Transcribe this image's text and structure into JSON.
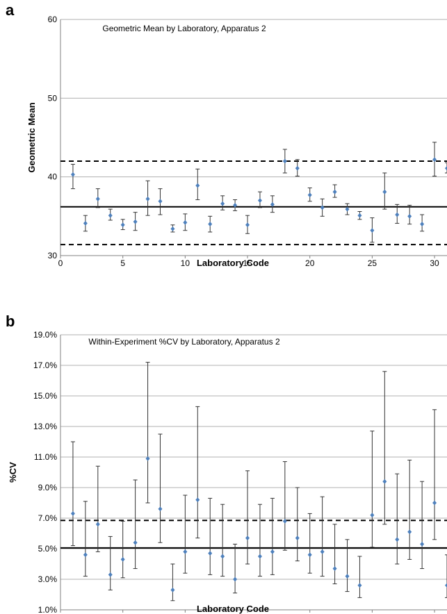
{
  "chart_data": [
    {
      "type": "scatter",
      "panel_letter": "a",
      "title": "Geometric Mean by Laboratory, Apparatus 2",
      "xlabel": "Laboratory Code",
      "ylabel": "Geometric Mean",
      "xlim": [
        0,
        31
      ],
      "ylim": [
        30,
        60
      ],
      "xticks": [
        0,
        5,
        10,
        15,
        20,
        25,
        30
      ],
      "yticks": [
        30,
        40,
        50,
        60
      ],
      "ytick_labels": [
        "30",
        "40",
        "50",
        "60"
      ],
      "grid": true,
      "point_color": "#4f81bd",
      "reference_lines": [
        {
          "value": 36.2,
          "style": "solid"
        },
        {
          "value": 42.0,
          "style": "dashed"
        },
        {
          "value": 31.4,
          "style": "dashed"
        }
      ],
      "x": [
        1,
        2,
        3,
        4,
        5,
        6,
        7,
        8,
        9,
        10,
        11,
        12,
        13,
        14,
        15,
        16,
        17,
        18,
        19,
        20,
        21,
        22,
        23,
        24,
        25,
        26,
        27,
        28,
        29,
        30,
        31
      ],
      "y": [
        40.3,
        34.1,
        37.2,
        35.1,
        33.9,
        34.3,
        37.2,
        36.9,
        33.4,
        34.2,
        38.9,
        34.0,
        36.6,
        36.4,
        33.9,
        37.0,
        36.5,
        42.0,
        41.1,
        37.7,
        36.1,
        38.1,
        35.9,
        35.1,
        33.2,
        38.1,
        35.2,
        35.0,
        34.0,
        42.2,
        41.1
      ],
      "err_low": [
        38.5,
        33.1,
        36.1,
        34.5,
        33.3,
        33.2,
        35.1,
        35.2,
        33.0,
        33.2,
        37.1,
        33.0,
        35.8,
        35.7,
        32.8,
        36.1,
        35.5,
        40.5,
        40.1,
        36.9,
        35.0,
        37.4,
        35.2,
        34.6,
        31.7,
        35.9,
        34.1,
        34.0,
        33.1,
        40.1,
        40.5
      ],
      "err_high": [
        41.6,
        35.1,
        38.5,
        35.9,
        34.6,
        35.5,
        39.5,
        38.5,
        33.9,
        35.3,
        41.0,
        35.0,
        37.6,
        37.1,
        35.1,
        38.1,
        37.6,
        43.5,
        42.2,
        38.6,
        37.2,
        39.0,
        36.6,
        35.6,
        34.8,
        40.5,
        36.5,
        36.4,
        35.2,
        44.4,
        41.8
      ]
    },
    {
      "type": "scatter",
      "panel_letter": "b",
      "title": "Within-Experiment %CV by Laboratory, Apparatus 2",
      "xlabel": "Laboratory Code",
      "ylabel": "%CV",
      "xlim": [
        0,
        31
      ],
      "ylim": [
        1,
        19
      ],
      "xticks": [
        0,
        5,
        10,
        15,
        20,
        25,
        30
      ],
      "yticks": [
        1,
        3,
        5,
        7,
        9,
        11,
        13,
        15,
        17,
        19
      ],
      "ytick_labels": [
        "1.0%",
        "3.0%",
        "5.0%",
        "7.0%",
        "9.0%",
        "11.0%",
        "13.0%",
        "15.0%",
        "17.0%",
        "19.0%"
      ],
      "grid": true,
      "point_color": "#4f81bd",
      "reference_lines": [
        {
          "value": 5.05,
          "style": "solid"
        },
        {
          "value": 6.85,
          "style": "dashed"
        }
      ],
      "x": [
        1,
        2,
        3,
        4,
        5,
        6,
        7,
        8,
        9,
        10,
        11,
        12,
        13,
        14,
        15,
        16,
        17,
        18,
        19,
        20,
        21,
        22,
        23,
        24,
        25,
        26,
        27,
        28,
        29,
        30,
        31
      ],
      "y": [
        7.3,
        4.6,
        6.6,
        3.3,
        4.3,
        5.4,
        10.9,
        7.6,
        2.3,
        4.8,
        8.2,
        4.7,
        4.5,
        3.0,
        5.7,
        4.5,
        4.8,
        6.8,
        5.7,
        4.6,
        4.8,
        3.7,
        3.2,
        2.6,
        7.2,
        9.4,
        5.6,
        6.1,
        5.3,
        8.0,
        2.6
      ],
      "err_low": [
        5.2,
        3.2,
        4.8,
        2.3,
        3.1,
        3.7,
        8.0,
        5.4,
        1.6,
        3.4,
        5.7,
        3.3,
        3.2,
        2.1,
        4.0,
        3.2,
        3.3,
        4.9,
        4.2,
        3.4,
        3.2,
        2.7,
        2.2,
        1.8,
        5.1,
        6.6,
        4.0,
        4.3,
        3.7,
        5.6,
        1.8
      ],
      "err_high": [
        12.0,
        8.1,
        10.4,
        5.8,
        6.8,
        9.5,
        17.2,
        12.5,
        4.0,
        8.5,
        14.3,
        8.3,
        7.9,
        5.3,
        10.1,
        7.9,
        8.3,
        10.7,
        9.0,
        7.3,
        8.4,
        6.6,
        5.6,
        4.5,
        12.7,
        16.6,
        9.9,
        10.8,
        9.4,
        14.1,
        4.6
      ]
    }
  ]
}
